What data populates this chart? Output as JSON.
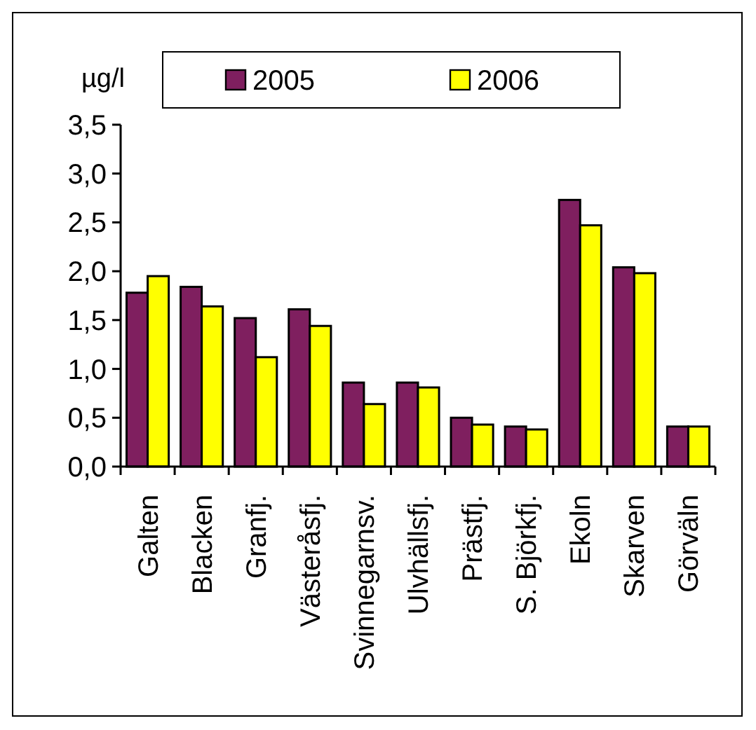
{
  "chart_data": {
    "type": "bar",
    "ylabel": "µg/l",
    "categories": [
      "Galten",
      "Blacken",
      "Granfj.",
      "Västeråsfj.",
      "Svinnegarnsv.",
      "Ulvhällsfj.",
      "Prästfj.",
      "S. Björkfj.",
      "Ekoln",
      "Skarven",
      "Görväln"
    ],
    "series": [
      {
        "name": "2005",
        "color": "#7f1f5f",
        "values": [
          1.78,
          1.84,
          1.52,
          1.61,
          0.86,
          0.86,
          0.5,
          0.41,
          2.73,
          2.04,
          0.41
        ]
      },
      {
        "name": "2006",
        "color": "#ffff00",
        "values": [
          1.95,
          1.64,
          1.12,
          1.44,
          0.64,
          0.81,
          0.43,
          0.38,
          2.47,
          1.98,
          0.41
        ]
      }
    ],
    "ylim": [
      0,
      3.5
    ],
    "yticks": [
      {
        "value": 0,
        "label": "0,0"
      },
      {
        "value": 0.5,
        "label": "0,5"
      },
      {
        "value": 1,
        "label": "1,0"
      },
      {
        "value": 1.5,
        "label": "1,5"
      },
      {
        "value": 2,
        "label": "2,0"
      },
      {
        "value": 2.5,
        "label": "2,5"
      },
      {
        "value": 3,
        "label": "3,0"
      },
      {
        "value": 3.5,
        "label": "3,5"
      }
    ],
    "legend": "top"
  }
}
